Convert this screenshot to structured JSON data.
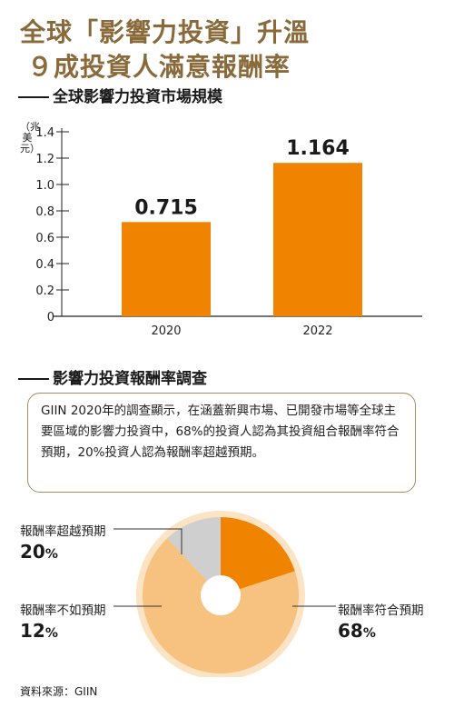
{
  "title": {
    "line1": "全球「影響力投資」升溫",
    "line2": "９成投資人滿意報酬率"
  },
  "colors": {
    "accent": "#f08300",
    "title": "#8a6a3a",
    "pie_light": "#f7c17f",
    "pie_gray": "#cfcfcf",
    "pie_ring": "#fbe3c4",
    "box_border": "#a98a5a"
  },
  "section1": {
    "heading": "全球影響力投資市場規模",
    "unit": "（兆美元）"
  },
  "section2": {
    "heading": "影響力投資報酬率調查"
  },
  "note": "GIIN 2020年的調查顯示，在涵蓋新興市場、已開發市場等全球主要區域的影響力投資中，68%的投資人認為其投資組合報酬率符合預期，20%投資人認為報酬率超越預期。",
  "source": "資料來源：GIIN",
  "chart_data": [
    {
      "type": "bar",
      "categories": [
        "2020",
        "2022"
      ],
      "values": [
        0.715,
        1.164
      ],
      "value_labels": [
        "0.715",
        "1.164"
      ],
      "title": "全球影響力投資市場規模",
      "ylabel": "（兆美元）",
      "ylim": [
        0,
        1.4
      ],
      "yticks": [
        0,
        0.2,
        0.4,
        0.6,
        0.8,
        1.0,
        1.2,
        1.4
      ],
      "ytick_labels": [
        "0",
        "0.2",
        "0.4",
        "0.6",
        "0.8",
        "1.0",
        "1.2",
        "1.4"
      ],
      "color": "#f08300",
      "grid": false
    },
    {
      "type": "pie",
      "title": "影響力投資報酬率調查",
      "slices": [
        {
          "label": "報酬率超越預期",
          "value": 20,
          "display": "20",
          "unit": "%",
          "color": "#f08300"
        },
        {
          "label": "報酬率符合預期",
          "value": 68,
          "display": "68",
          "unit": "%",
          "color": "#f7c17f"
        },
        {
          "label": "報酬率不如預期",
          "value": 12,
          "display": "12",
          "unit": "%",
          "color": "#cfcfcf"
        }
      ]
    }
  ]
}
